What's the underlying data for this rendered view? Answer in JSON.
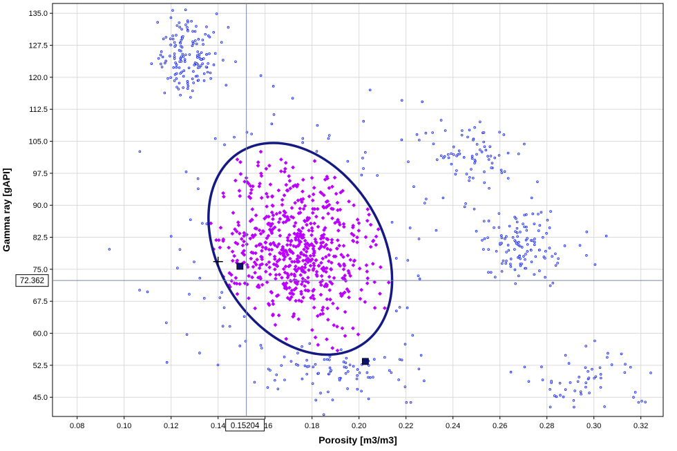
{
  "chart_data": {
    "type": "scatter",
    "xlabel": "Porosity [m3/m3]",
    "ylabel": "Gamma ray [gAPI]",
    "xlim": [
      0.0695,
      0.3295
    ],
    "ylim": [
      40.5,
      137.3
    ],
    "x_ticks": [
      "0.08",
      "0.10",
      "0.12",
      "0.14",
      "0.16",
      "0.18",
      "0.20",
      "0.22",
      "0.24",
      "0.26",
      "0.28",
      "0.30",
      "0.32"
    ],
    "y_ticks": [
      "45.0",
      "52.5",
      "60.0",
      "67.5",
      "75.0",
      "82.5",
      "90.0",
      "97.5",
      "105.0",
      "112.5",
      "120.0",
      "127.5",
      "135.0"
    ],
    "grid": true,
    "cursor": {
      "x": 0.15204,
      "y": 72.362,
      "x_label": "0.15204",
      "y_label": "72.362"
    },
    "ellipse": {
      "center_x": 0.175,
      "center_y": 79.8,
      "semi_major": 0.95,
      "semi_minor": 0.35,
      "tilt_deg": 61.5
    },
    "handles": [
      {
        "x": 0.1493,
        "y": 75.7
      },
      {
        "x": 0.2027,
        "y": 53.4
      }
    ],
    "cross_marker": {
      "x": 0.14,
      "y": 76.8
    },
    "point_colors": {
      "selected": "#bb00ff",
      "unselected": "#1a2bff",
      "ellipse": "#141a82",
      "handle": "#0d1170"
    },
    "clusters": [
      {
        "name": "",
        "cx": 0.1275,
        "cy": 125.5,
        "sx": 0.0075,
        "sy": 5.0,
        "n": 150,
        "selected": false
      },
      {
        "name": "",
        "cx": 0.2475,
        "cy": 101.0,
        "sx": 0.0105,
        "sy": 4.3,
        "n": 75,
        "selected": false
      },
      {
        "name": "",
        "cx": 0.2705,
        "cy": 80.5,
        "sx": 0.0095,
        "sy": 4.6,
        "n": 120,
        "selected": false
      },
      {
        "name": "",
        "cx": 0.292,
        "cy": 48.5,
        "sx": 0.0165,
        "sy": 4.0,
        "n": 55,
        "selected": false
      },
      {
        "name": "",
        "cx": 0.187,
        "cy": 51.0,
        "sx": 0.0155,
        "sy": 3.2,
        "n": 70,
        "selected": false
      },
      {
        "name": "",
        "cx": 0.175,
        "cy": 79.8,
        "sx": 0.028,
        "sy": 15.5,
        "n": 90,
        "selected": false,
        "scatter_outside": true
      },
      {
        "name": "",
        "cx": 0.175,
        "cy": 79.8,
        "sx": 0.0175,
        "sy": 9.5,
        "n": 640,
        "selected": true
      }
    ]
  }
}
